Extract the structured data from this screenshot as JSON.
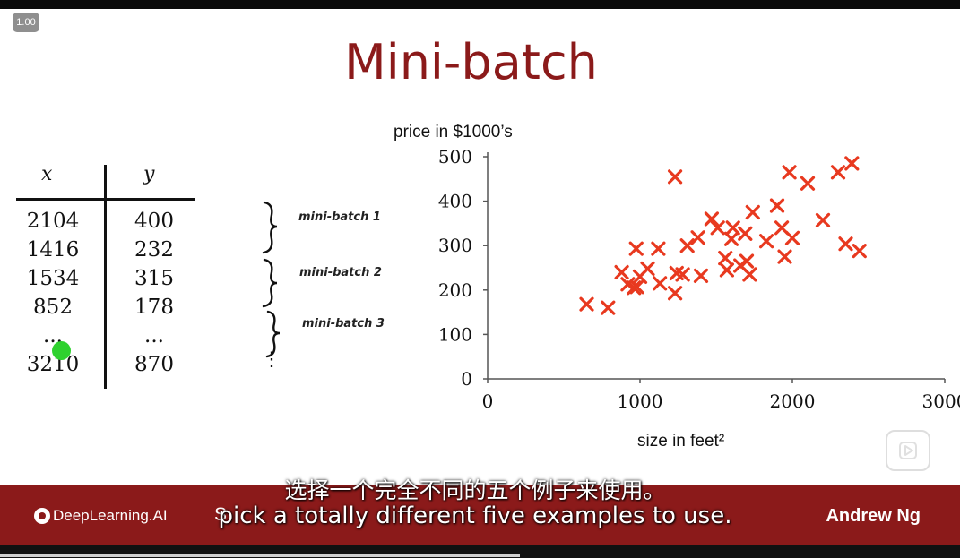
{
  "player": {
    "speed": "1.00"
  },
  "slide": {
    "title": "Mini-batch",
    "table": {
      "headers": [
        "x",
        "y"
      ],
      "rows": [
        [
          "2104",
          "400"
        ],
        [
          "1416",
          "232"
        ],
        [
          "1534",
          "315"
        ],
        [
          "852",
          "178"
        ],
        [
          "...",
          "..."
        ],
        [
          "3210",
          "870"
        ]
      ]
    },
    "minibatches": [
      "mini-batch 1",
      "mini-batch 2",
      "mini-batch 3"
    ],
    "ellipsis": "⋮"
  },
  "chart_data": {
    "type": "scatter",
    "ylabel": "price in $1000’s",
    "xlabel": "size in feet²",
    "xlim": [
      0,
      3000
    ],
    "ylim": [
      0,
      500
    ],
    "xticks": [
      "0",
      "1000",
      "2000",
      "3000"
    ],
    "yticks": [
      "0",
      "100",
      "200",
      "300",
      "400",
      "500"
    ],
    "marker_color": "#e8391f",
    "points": [
      [
        650,
        168
      ],
      [
        790,
        160
      ],
      [
        880,
        240
      ],
      [
        920,
        213
      ],
      [
        960,
        205
      ],
      [
        975,
        293
      ],
      [
        980,
        207
      ],
      [
        1000,
        230
      ],
      [
        1050,
        248
      ],
      [
        1120,
        293
      ],
      [
        1130,
        215
      ],
      [
        1230,
        455
      ],
      [
        1230,
        193
      ],
      [
        1240,
        238
      ],
      [
        1280,
        235
      ],
      [
        1310,
        300
      ],
      [
        1380,
        318
      ],
      [
        1400,
        232
      ],
      [
        1470,
        360
      ],
      [
        1510,
        340
      ],
      [
        1560,
        272
      ],
      [
        1570,
        245
      ],
      [
        1600,
        315
      ],
      [
        1610,
        340
      ],
      [
        1660,
        255
      ],
      [
        1690,
        327
      ],
      [
        1700,
        265
      ],
      [
        1720,
        235
      ],
      [
        1740,
        375
      ],
      [
        1830,
        310
      ],
      [
        1900,
        390
      ],
      [
        1930,
        340
      ],
      [
        1950,
        275
      ],
      [
        1980,
        465
      ],
      [
        2000,
        317
      ],
      [
        2100,
        440
      ],
      [
        2200,
        357
      ],
      [
        2300,
        465
      ],
      [
        2350,
        304
      ],
      [
        2390,
        485
      ],
      [
        2440,
        288
      ]
    ]
  },
  "branding": {
    "logo": "DeepLearning.AI",
    "author": "Andrew Ng",
    "partial_caption": "S"
  },
  "subtitles": {
    "zh": "选择一个完全不同的五个例子来使用。",
    "en": "pick a totally different five examples to use."
  }
}
